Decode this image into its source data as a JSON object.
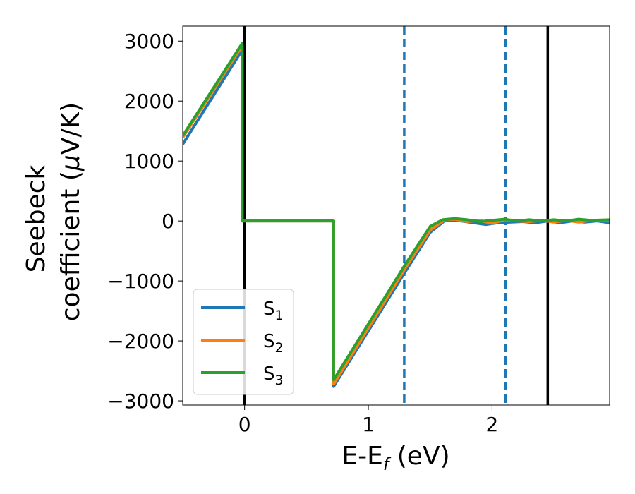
{
  "chart_data": {
    "type": "line",
    "xlabel": "E-E",
    "xlabel_sub": "f",
    "xlabel_unit": " (eV)",
    "ylabel_line1": "Seebeck",
    "ylabel_line2": "coefficient  (",
    "ylabel_mu": "μ",
    "ylabel_unit": "V/K)",
    "xlim": [
      -0.5,
      2.95
    ],
    "ylim": [
      -3070,
      3250
    ],
    "xticks": [
      0,
      1,
      2
    ],
    "xtick_labels": [
      "0",
      "1",
      "2"
    ],
    "yticks": [
      -3000,
      -2000,
      -1000,
      0,
      1000,
      2000,
      3000
    ],
    "ytick_labels": [
      "−3000",
      "−2000",
      "−1000",
      "0",
      "1000",
      "2000",
      "3000"
    ],
    "grid": false,
    "legend_position": "lower-left",
    "vlines_solid": [
      0.0,
      2.45
    ],
    "vlines_dashed": [
      1.29,
      2.11
    ],
    "series": [
      {
        "name": "S",
        "sub": "1",
        "color": "#1f77b4",
        "points": [
          [
            -0.5,
            1280
          ],
          [
            -0.02,
            2850
          ],
          [
            -0.02,
            0
          ],
          [
            0.72,
            0
          ],
          [
            0.72,
            -2760
          ],
          [
            1.3,
            -840
          ],
          [
            1.5,
            -190
          ],
          [
            1.62,
            10
          ],
          [
            1.75,
            0
          ],
          [
            1.85,
            -30
          ],
          [
            1.95,
            -60
          ],
          [
            2.05,
            -30
          ],
          [
            2.15,
            -20
          ],
          [
            2.25,
            -10
          ],
          [
            2.35,
            -30
          ],
          [
            2.45,
            0
          ],
          [
            2.55,
            -30
          ],
          [
            2.65,
            0
          ],
          [
            2.75,
            -20
          ],
          [
            2.85,
            0
          ],
          [
            2.95,
            -30
          ]
        ]
      },
      {
        "name": "S",
        "sub": "2",
        "color": "#ff7f0e",
        "points": [
          [
            -0.5,
            1390
          ],
          [
            -0.02,
            2920
          ],
          [
            -0.02,
            0
          ],
          [
            0.72,
            0
          ],
          [
            0.72,
            -2720
          ],
          [
            1.3,
            -780
          ],
          [
            1.5,
            -150
          ],
          [
            1.62,
            20
          ],
          [
            1.7,
            30
          ],
          [
            1.8,
            -10
          ],
          [
            1.9,
            10
          ],
          [
            2.0,
            -40
          ],
          [
            2.1,
            20
          ],
          [
            2.2,
            0
          ],
          [
            2.3,
            -10
          ],
          [
            2.4,
            10
          ],
          [
            2.5,
            -20
          ],
          [
            2.6,
            10
          ],
          [
            2.7,
            -20
          ],
          [
            2.8,
            10
          ],
          [
            2.95,
            0
          ]
        ]
      },
      {
        "name": "S",
        "sub": "3",
        "color": "#2ca02c",
        "points": [
          [
            -0.5,
            1420
          ],
          [
            -0.02,
            2960
          ],
          [
            -0.02,
            0
          ],
          [
            0.72,
            0
          ],
          [
            0.72,
            -2650
          ],
          [
            1.3,
            -720
          ],
          [
            1.5,
            -90
          ],
          [
            1.6,
            20
          ],
          [
            1.7,
            40
          ],
          [
            1.8,
            20
          ],
          [
            1.9,
            -10
          ],
          [
            2.0,
            10
          ],
          [
            2.1,
            30
          ],
          [
            2.2,
            0
          ],
          [
            2.3,
            20
          ],
          [
            2.4,
            0
          ],
          [
            2.5,
            20
          ],
          [
            2.6,
            0
          ],
          [
            2.7,
            30
          ],
          [
            2.8,
            10
          ],
          [
            2.95,
            20
          ]
        ]
      }
    ]
  }
}
